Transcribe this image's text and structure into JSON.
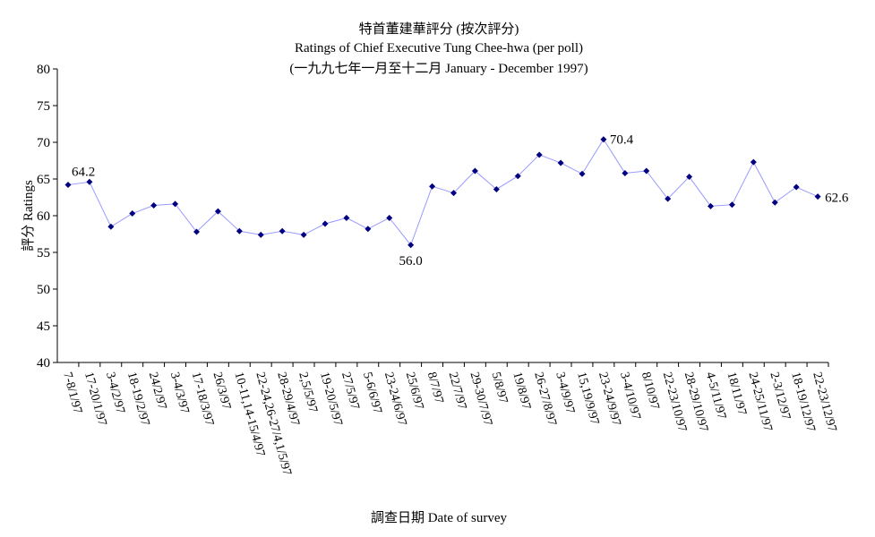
{
  "chart_data": {
    "type": "line",
    "title": "特首董建華評分 (按次評分)",
    "subtitle": "Ratings of Chief Executive Tung Chee-hwa (per poll)",
    "subtitle2": "(一九九七年一月至十二月 January - December 1997)",
    "xlabel": "調查日期 Date of survey",
    "ylabel": "評分 Ratings",
    "ylim": [
      40,
      80
    ],
    "yticks": [
      "40",
      "45",
      "50",
      "55",
      "60",
      "65",
      "70",
      "75",
      "80"
    ],
    "grid": false,
    "categories": [
      "7-8/1/97",
      "17-20/1/97",
      "3-4/2/97",
      "18-19/2/97",
      "24/2/97",
      "3-4/3/97",
      "17-18/3/97",
      "26/3/97",
      "10-11,14-15/4/97",
      "22-24,26-27/4,1/5/97",
      "28-29/4/97",
      "2,5/5/97",
      "19-20/5/97",
      "27/5/97",
      "5-6/6/97",
      "23-24/6/97",
      "25/6/97",
      "8/7/97",
      "22/7/97",
      "29-30/7/97",
      "5/8/97",
      "19/8/97",
      "26-27/8/97",
      "3-4/9/97",
      "15,19/9/97",
      "23-24/9/97",
      "3-4/10/97",
      "8/10/97",
      "22-23/10/97",
      "28-29/10/97",
      "4-5/11/97",
      "18/11/97",
      "24-25/11/97",
      "2-3/12/97",
      "18-19/12/97",
      "22-23/12/97"
    ],
    "values": [
      64.2,
      64.6,
      58.5,
      60.3,
      61.4,
      61.6,
      57.8,
      60.6,
      57.9,
      57.4,
      57.9,
      57.4,
      58.9,
      59.7,
      58.2,
      59.7,
      56.0,
      64.0,
      63.1,
      66.1,
      63.6,
      65.4,
      68.3,
      67.2,
      65.7,
      70.4,
      65.8,
      66.1,
      62.3,
      65.3,
      61.3,
      61.5,
      67.3,
      61.8,
      63.9,
      62.6
    ],
    "annotations": [
      {
        "index": 0,
        "label": "64.2"
      },
      {
        "index": 16,
        "label": "56.0"
      },
      {
        "index": 25,
        "label": "70.4"
      },
      {
        "index": 35,
        "label": "62.6"
      }
    ],
    "line_color": "#9999ff",
    "marker_color": "#000080"
  }
}
